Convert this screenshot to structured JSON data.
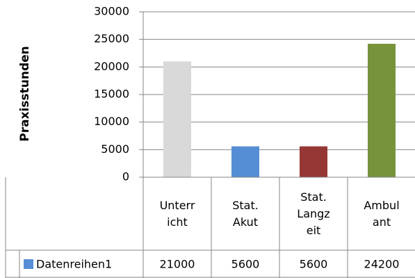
{
  "chart_data": {
    "type": "bar",
    "ylabel": "Praxisstunden",
    "categories": [
      "Unterricht",
      "Stat. Akut",
      "Stat. Langzeit",
      "Ambulant"
    ],
    "series": [
      {
        "name": "Datenreihen1",
        "color": "#558ed5",
        "values": [
          21000,
          5600,
          5600,
          24200
        ]
      }
    ],
    "bar_colors": [
      "#d9d9d9",
      "#558ed5",
      "#953735",
      "#77933c"
    ],
    "ylim": [
      0,
      30000
    ],
    "yticks": [
      0,
      5000,
      10000,
      15000,
      20000,
      25000,
      30000
    ],
    "grid": true,
    "data_table": true
  }
}
